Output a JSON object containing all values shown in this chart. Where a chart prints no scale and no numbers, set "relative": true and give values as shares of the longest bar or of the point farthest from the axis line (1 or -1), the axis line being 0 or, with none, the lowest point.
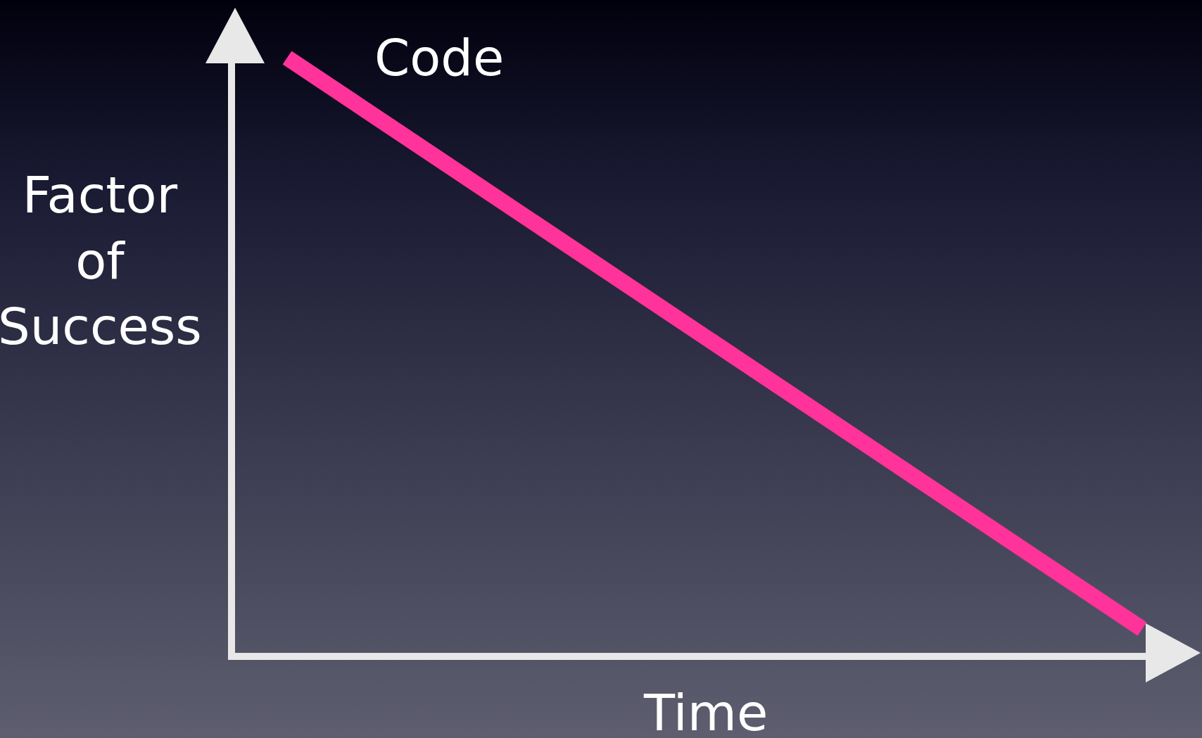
{
  "chart_data": {
    "type": "line",
    "xlabel": "Time",
    "ylabel": "Factor of Success",
    "categories": [
      null,
      null
    ],
    "relative": true,
    "series": [
      {
        "name": "Code",
        "color": "#ff3399",
        "values": [
          1,
          0.04
        ]
      }
    ],
    "marker": "none",
    "line_style": "solid",
    "grid": false,
    "legend": false
  }
}
